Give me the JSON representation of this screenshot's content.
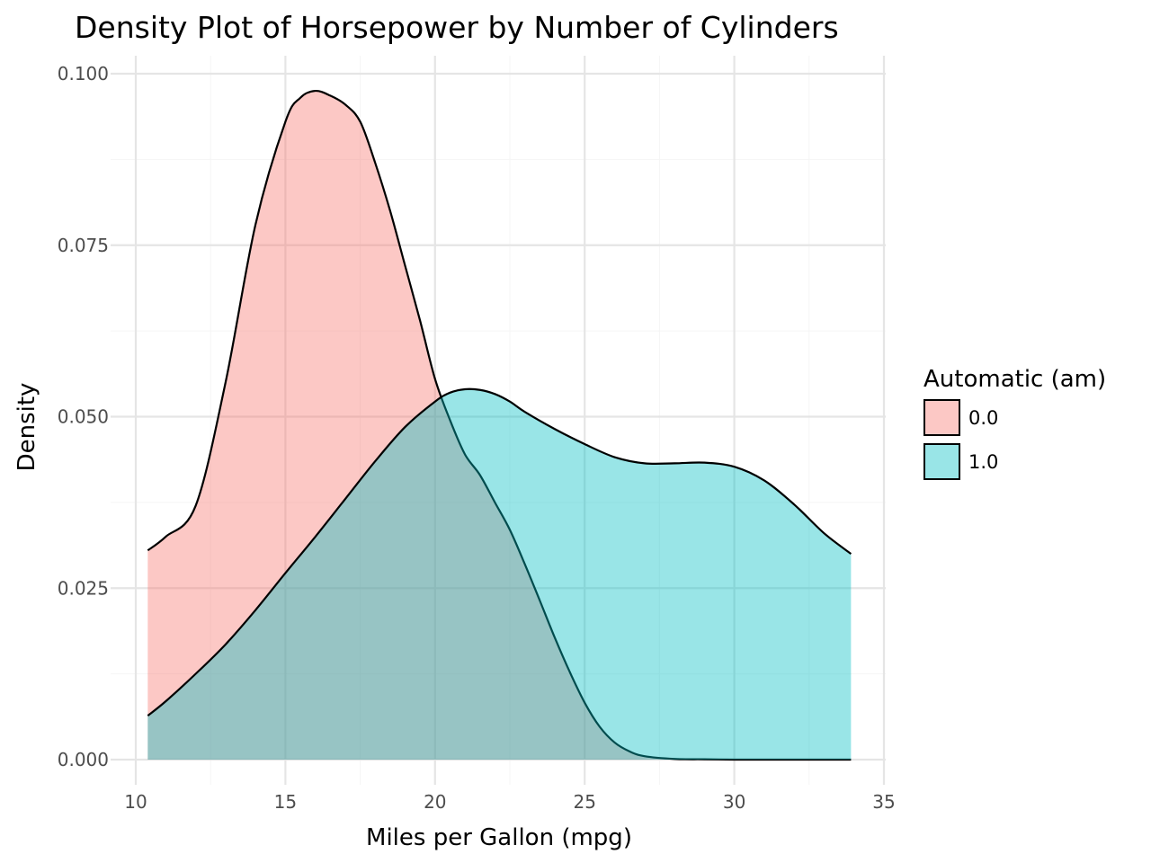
{
  "chart_data": {
    "type": "area",
    "title": "Density Plot of Horsepower by Number of Cylinders",
    "xlabel": "Miles per Gallon (mpg)",
    "ylabel": "Density",
    "xlim": [
      10,
      35
    ],
    "ylim": [
      0,
      0.1
    ],
    "x_ticks": [
      "10",
      "15",
      "20",
      "25",
      "30",
      "35"
    ],
    "y_ticks": [
      "0.000",
      "0.025",
      "0.050",
      "0.075",
      "0.100"
    ],
    "grid": true,
    "legend": {
      "title": "Automatic (am)",
      "position": "right"
    },
    "series": [
      {
        "name": "0.0",
        "color": "#F8766D",
        "x": [
          10.4,
          11.0,
          12.0,
          13.0,
          14.0,
          15.0,
          15.5,
          16.0,
          16.5,
          17.0,
          17.5,
          18.0,
          18.5,
          19.0,
          19.5,
          20.0,
          20.5,
          21.0,
          21.5,
          22.0,
          22.5,
          23.0,
          23.5,
          24.0,
          24.5,
          25.0,
          25.5,
          26.0,
          26.5,
          27.0,
          28.0,
          29.0,
          30.0,
          31.0,
          32.0,
          33.0,
          33.9
        ],
        "y": [
          0.0305,
          0.0325,
          0.037,
          0.055,
          0.078,
          0.093,
          0.0965,
          0.0975,
          0.0968,
          0.0955,
          0.093,
          0.087,
          0.08,
          0.072,
          0.064,
          0.0555,
          0.0495,
          0.0445,
          0.0415,
          0.0375,
          0.0335,
          0.0285,
          0.0232,
          0.0178,
          0.0128,
          0.0083,
          0.0048,
          0.0025,
          0.0012,
          0.0005,
          0.0001,
          5e-05,
          0.0,
          0.0,
          0.0,
          0.0,
          0.0
        ]
      },
      {
        "name": "1.0",
        "color": "#00BFC4",
        "x": [
          10.4,
          11.0,
          12.0,
          13.0,
          14.0,
          15.0,
          16.0,
          17.0,
          18.0,
          19.0,
          20.0,
          20.5,
          21.0,
          21.5,
          22.0,
          22.5,
          23.0,
          24.0,
          25.0,
          26.0,
          27.0,
          28.0,
          29.0,
          30.0,
          31.0,
          32.0,
          33.0,
          33.9
        ],
        "y": [
          0.0064,
          0.0085,
          0.0125,
          0.0168,
          0.0218,
          0.0272,
          0.0325,
          0.038,
          0.0435,
          0.0485,
          0.0522,
          0.0535,
          0.054,
          0.0539,
          0.0533,
          0.0522,
          0.0507,
          0.0482,
          0.046,
          0.0441,
          0.0432,
          0.0432,
          0.0433,
          0.0427,
          0.0407,
          0.0372,
          0.033,
          0.03
        ]
      }
    ]
  }
}
